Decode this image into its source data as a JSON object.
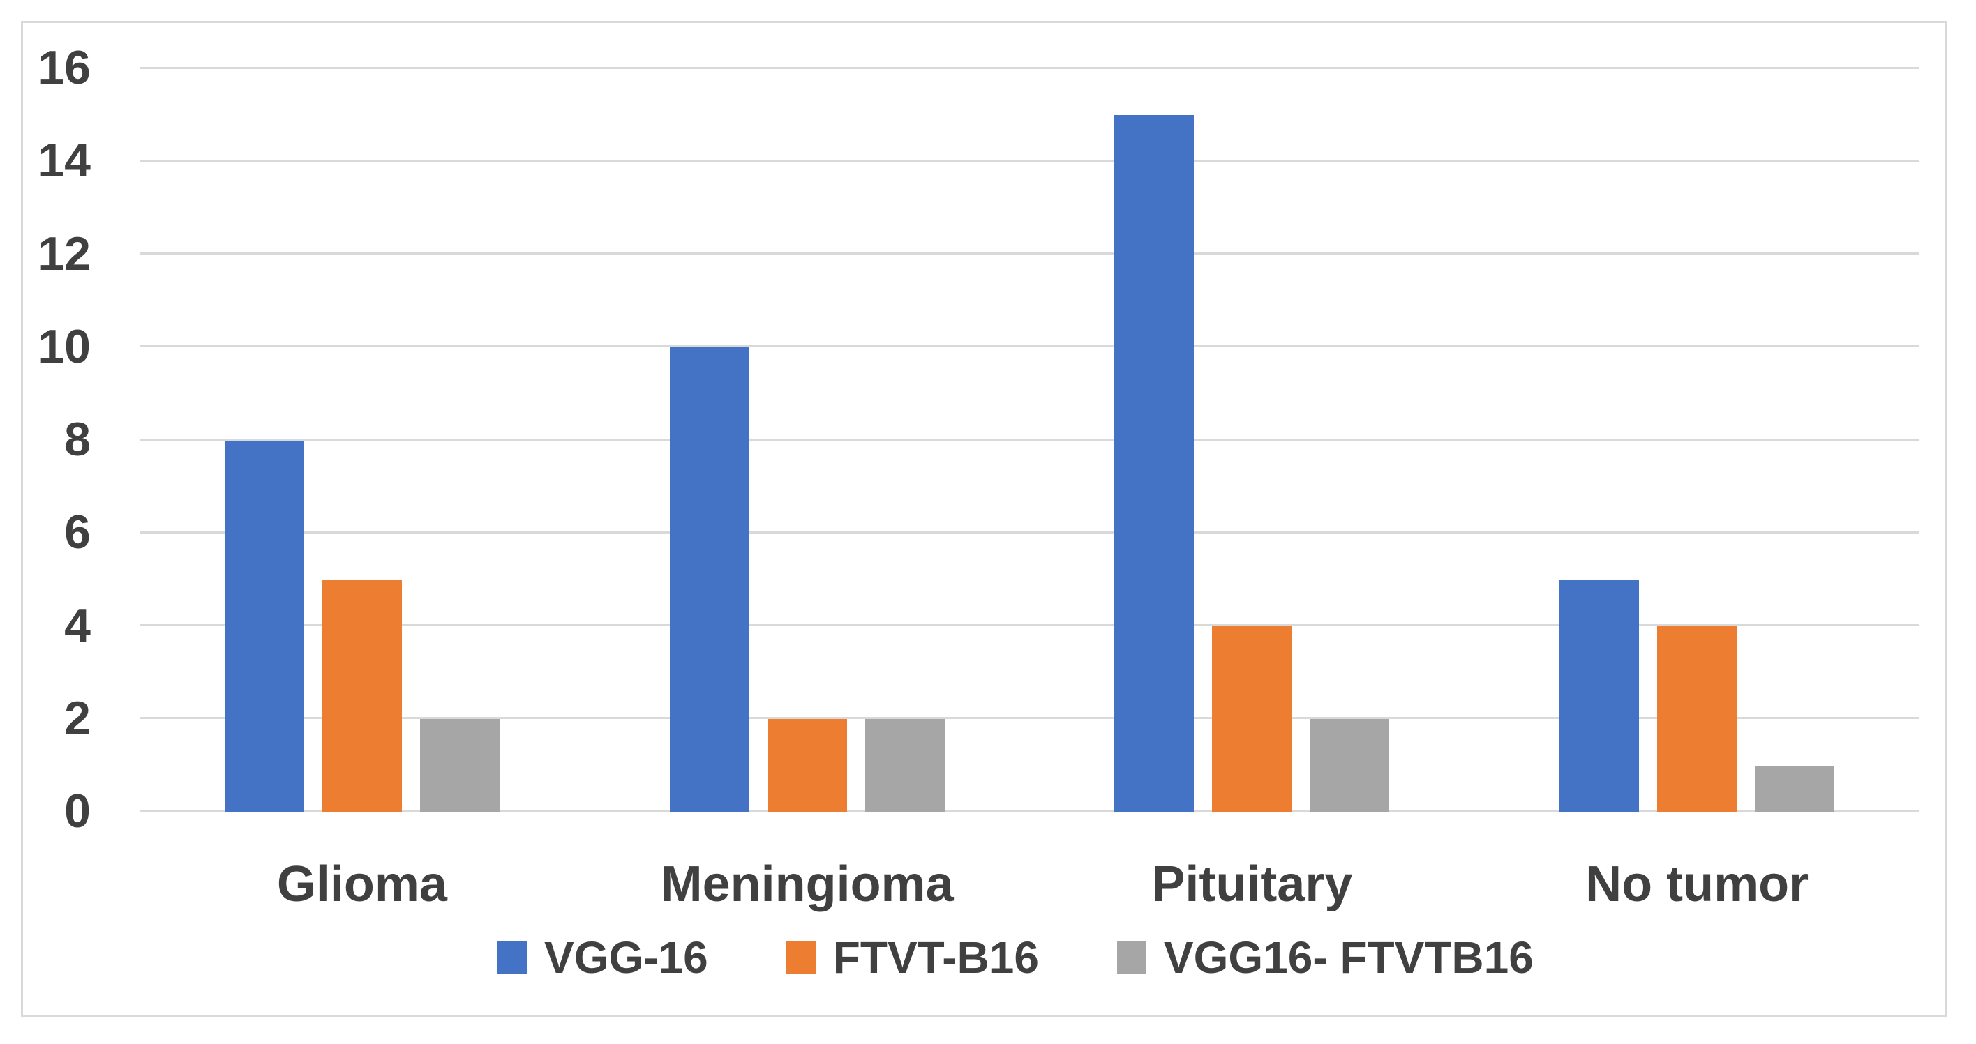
{
  "chart_data": {
    "type": "bar",
    "title": "",
    "categories": [
      "Glioma",
      "Meningioma",
      "Pituitary",
      "No tumor"
    ],
    "series": [
      {
        "name": "VGG-16",
        "color": "#4472C4",
        "values": [
          8,
          10,
          15,
          5
        ]
      },
      {
        "name": "FTVT-B16",
        "color": "#ED7D31",
        "values": [
          5,
          2,
          4,
          4
        ]
      },
      {
        "name": "VGG16- FTVTB16",
        "color": "#A6A6A6",
        "values": [
          2,
          2,
          2,
          1
        ]
      }
    ],
    "xlabel": "",
    "ylabel": "",
    "ylim": [
      0,
      16
    ],
    "ytick_step": 2,
    "yticks": [
      "0",
      "2",
      "4",
      "6",
      "8",
      "10",
      "12",
      "14",
      "16"
    ],
    "grid": true,
    "legend_position": "bottom"
  },
  "colors": {
    "gridline": "#D9D9D9",
    "frame_border": "#D9D9D9",
    "axis_text": "#404040",
    "background": "#FFFFFF"
  }
}
